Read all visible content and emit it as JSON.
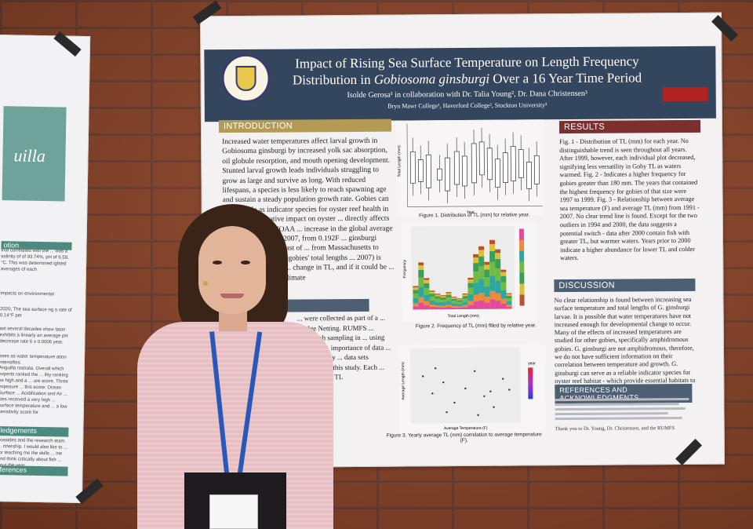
{
  "poster": {
    "title_line1": "Impact of Rising Sea Surface Temperature on Length Frequency",
    "title_line2_prefix": "Distribution in ",
    "title_species": "Gobiosoma ginsburgi",
    "title_line2_suffix": " Over a 16 Year Time Period",
    "authors": "Isolde Gerosa¹ in collaboration with Dr. Talia Young², Dr. Dana Christensen³",
    "affiliations": "Bryn Mawr College¹, Haverford College², Stockton University³",
    "sections": {
      "introduction": "INTRODUCTION",
      "results": "RESULTS",
      "discussion": "DISCUSSION",
      "references": "REFERENCES AND ACKNOWLEDGMENTS"
    },
    "intro_text": "Increased water temperatures affect larval growth in Gobiosoma ginsburgi by increased yolk sac absorption, oil globule resorption, and mouth opening development. Stunted larval growth leads individuals struggling to grow as large and survive as long. With reduced lifespans, a species is less likely to reach spawning age and sustain a steady population growth rate. Gobies can serve a role as indicator species for oyster reef health in estuaries. A negative impact on oyster ... directly affects local food webs. NOAA ... increase in the global average of sea ... from 1991-2007, from 0.192F ... ginsburgi populates the East coast of ... from Massachusetts to Florida ... data on the gobies' total lengths ... 2007) is used to investigate a ... change in TL, and if it could be ... temperatures due to climate",
    "methods_text": "... were collected as part of a ... Bridge Netting. RUMFS ... larval fish sampling in ... using plankton ... importance of data ... indicate early ... data sets including ... this study. Each ... ing to ... and TL",
    "fig1_caption": "Figure 1. Distribution of TL (mm) for relative year.",
    "fig2_caption": "Figure 2. Frequency of TL (mm) filled by relative year.",
    "fig3_caption": "Figure 3. Yearly average TL (mm) correlation to average temperature (F).",
    "fig1_ylabel": "Total Length (mm)",
    "fig1_xlabel": "Year",
    "fig2_ylabel": "Frequency",
    "fig2_xlabel": "Total Length (mm)",
    "fig3_ylabel": "Average Length (mm)",
    "fig3_xlabel": "Average Temperature (F)",
    "fig3_legend": "year",
    "results_text": "Fig. 1 - Distribution of TL (mm) for each year. No distinguishable trend is seen throughout all years. After 1999, however, each individual plot decreased, signifying less versatility in Goby TL as waters warmed. Fig. 2 - Indicates a higher frequency for gobies greater than 180 mm. The years that contained the highest frequency for gobies of that size were 1997 to 1999. Fig. 3 - Relationship between average sea temperature (F) and average TL (mm) from 1991 - 2007. No clear trend line is found. Except for the two outliers in 1994 and 2000, the data suggests a potential switch - data after 2000 contain fish with greater TL, but warmer waters. Years prior to 2000 indicate a higher abundance for lower TL and colder waters.",
    "discussion_text": "No clear relationship is found between increasing sea surface temperature and total lengths of G. ginsburgi larvae. It is possible that water temperatures have not increased enough for developmental change to occur. Many of the effects of increased temperatures are studied for other gobies, specifically amphidromous gobies. G. ginsburgi are not amphidromous, therefore, we do not have sufficient information on their correlation between temperature and growth. G. ginsburgi can serve as a reliable indicator species for oyster reef habitat - which provide essential habitats to forage fish, invertebrates, and other shellfish.",
    "thanks": "Thank you to Dr. Young, Dr. Christensen, and the RUMFS"
  },
  "left_poster": {
    "title": "uilla",
    "heads": [
      "ledgements",
      "ferences"
    ],
    "text_fragments": [
      "otion",
      "that correlated with the ... was a salinity of of 93.74%, pH of 6.59, °C. This was determined ighted averages of each",
      "impacts on environmental",
      "2020, The sea surface ng a rate of 0.14°F per",
      "ast several decades show laton exhibits a linearly an average pH decrease rate 6 ± 0.0006 year.",
      "ases as water temperature ation intensifies.",
      "Anguilla rostrata. Overall which experts ranked the ... ility ranking as high and a ... ure score. Three exposure ... this score: Ocean Surface ... Acidification and Air ... cies received a very high ... surface temperature and ... a low sensitivity score for",
      "possides and the research team ... rtnership. I would also like to ... for teaching me the skills ... ine and think critically about fish ... bout the year."
    ]
  },
  "chart_data": {
    "type": "bar",
    "title": "Figure 2. Frequency of TL (mm) filled by relative year.",
    "xlabel": "Total Length (mm)",
    "ylabel": "Frequency",
    "series_colors": [
      "#e34b9a",
      "#f08a3a",
      "#2fa6a0",
      "#6fbb46",
      "#3c9e57",
      "#d9c13c",
      "#b7542f"
    ]
  }
}
